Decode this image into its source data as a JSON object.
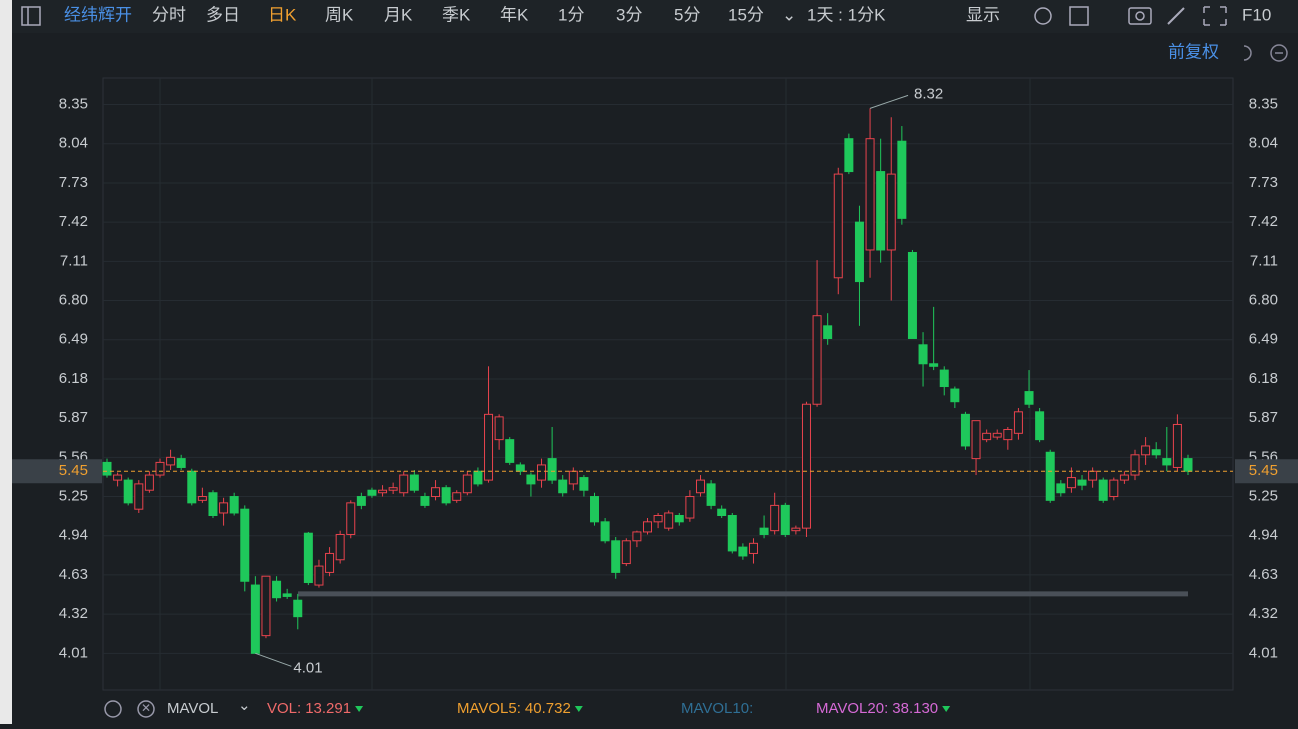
{
  "toolbar": {
    "stock": "经纬辉开",
    "periods": [
      {
        "label": "分时"
      },
      {
        "label": "多日"
      },
      {
        "label": "日K",
        "active": true
      },
      {
        "label": "周K"
      },
      {
        "label": "月K"
      },
      {
        "label": "季K"
      },
      {
        "label": "年K"
      },
      {
        "label": "1分"
      },
      {
        "label": "3分"
      },
      {
        "label": "5分"
      },
      {
        "label": "15分"
      }
    ],
    "range": "1天 : 1分K",
    "display": "显示",
    "f10": "F10"
  },
  "adjust": "前复权",
  "chart_data": {
    "type": "candlestick",
    "up_color": "#e8434d",
    "down_color": "#1fc85b",
    "open": [
      5.52,
      5.38,
      5.38,
      5.15,
      5.3,
      5.42,
      5.5,
      5.55,
      5.45,
      5.22,
      5.28,
      5.12,
      5.25,
      5.15,
      4.55,
      4.15,
      4.58,
      4.48,
      4.43,
      4.96,
      4.55,
      4.65,
      4.75,
      4.95,
      5.25,
      5.3,
      5.28,
      5.3,
      5.28,
      5.42,
      5.25,
      5.25,
      5.32,
      5.22,
      5.28,
      5.45,
      5.38,
      5.7,
      5.7,
      5.5,
      5.42,
      5.38,
      5.55,
      5.38,
      5.35,
      5.4,
      5.25,
      5.05,
      4.9,
      4.72,
      4.9,
      4.97,
      5.05,
      5.0,
      5.1,
      5.08,
      5.28,
      5.35,
      5.15,
      5.1,
      4.85,
      4.8,
      5.0,
      4.98,
      5.18,
      4.98,
      5.0,
      5.98,
      6.6,
      6.98,
      8.08,
      7.42,
      7.2,
      7.82,
      7.2,
      8.06,
      7.18,
      6.45,
      6.3,
      6.25,
      6.1,
      5.9,
      5.55,
      5.7,
      5.72,
      5.7,
      5.75,
      6.08,
      5.92,
      5.6,
      5.35,
      5.32,
      5.38,
      5.38,
      5.38,
      5.25,
      5.38,
      5.42,
      5.58,
      5.62,
      5.55,
      5.48,
      5.55
    ],
    "high": [
      5.55,
      5.44,
      5.4,
      5.38,
      5.45,
      5.55,
      5.62,
      5.58,
      5.47,
      5.32,
      5.3,
      5.24,
      5.28,
      5.18,
      4.62,
      4.62,
      4.62,
      4.52,
      4.48,
      4.97,
      4.75,
      4.85,
      4.98,
      5.22,
      5.28,
      5.32,
      5.34,
      5.36,
      5.45,
      5.46,
      5.28,
      5.38,
      5.34,
      5.3,
      5.45,
      5.48,
      6.28,
      5.9,
      5.72,
      5.52,
      5.44,
      5.55,
      5.8,
      5.42,
      5.48,
      5.42,
      5.28,
      5.08,
      4.93,
      4.92,
      4.98,
      5.08,
      5.12,
      5.14,
      5.12,
      5.3,
      5.42,
      5.38,
      5.18,
      5.12,
      4.88,
      4.92,
      5.1,
      5.28,
      5.2,
      5.02,
      6.0,
      7.12,
      6.7,
      7.85,
      8.12,
      7.55,
      8.32,
      8.08,
      8.25,
      8.18,
      7.2,
      6.55,
      6.75,
      6.28,
      6.12,
      5.92,
      5.85,
      5.78,
      5.78,
      5.8,
      5.95,
      6.25,
      5.95,
      5.62,
      5.38,
      5.48,
      5.42,
      5.48,
      5.4,
      5.4,
      5.45,
      5.62,
      5.72,
      5.68,
      5.8,
      5.9,
      5.58
    ],
    "low": [
      5.4,
      5.33,
      5.18,
      5.12,
      5.28,
      5.4,
      5.46,
      5.46,
      5.18,
      5.2,
      5.08,
      5.02,
      5.1,
      4.5,
      4.01,
      4.13,
      4.42,
      4.44,
      4.2,
      4.55,
      4.53,
      4.62,
      4.72,
      4.92,
      5.15,
      5.24,
      5.25,
      5.27,
      5.25,
      5.28,
      5.16,
      5.22,
      5.18,
      5.2,
      5.26,
      5.33,
      5.36,
      5.62,
      5.5,
      5.42,
      5.25,
      5.32,
      5.35,
      5.25,
      5.3,
      5.25,
      5.02,
      4.88,
      4.6,
      4.7,
      4.85,
      4.95,
      5.0,
      4.98,
      5.02,
      5.05,
      5.25,
      5.15,
      5.08,
      4.8,
      4.75,
      4.72,
      4.92,
      4.95,
      4.93,
      4.95,
      4.93,
      5.96,
      6.45,
      6.85,
      7.8,
      6.6,
      6.98,
      7.1,
      6.8,
      7.4,
      6.5,
      6.12,
      6.25,
      6.05,
      5.95,
      5.62,
      5.42,
      5.68,
      5.7,
      5.62,
      5.7,
      5.95,
      5.68,
      5.2,
      5.25,
      5.28,
      5.3,
      5.32,
      5.2,
      5.22,
      5.35,
      5.38,
      5.5,
      5.55,
      5.45,
      5.45,
      5.42
    ],
    "close": [
      5.42,
      5.42,
      5.2,
      5.35,
      5.42,
      5.52,
      5.56,
      5.48,
      5.2,
      5.25,
      5.1,
      5.2,
      5.12,
      4.58,
      4.01,
      4.62,
      4.45,
      4.46,
      4.3,
      4.57,
      4.7,
      4.8,
      4.95,
      5.2,
      5.18,
      5.26,
      5.3,
      5.32,
      5.42,
      5.3,
      5.18,
      5.32,
      5.2,
      5.28,
      5.42,
      5.35,
      5.9,
      5.88,
      5.52,
      5.45,
      5.35,
      5.5,
      5.38,
      5.28,
      5.45,
      5.3,
      5.05,
      4.9,
      4.65,
      4.9,
      4.97,
      5.05,
      5.1,
      5.12,
      5.05,
      5.25,
      5.38,
      5.18,
      5.1,
      4.82,
      4.78,
      4.88,
      4.95,
      5.18,
      4.95,
      5.0,
      5.98,
      6.68,
      6.5,
      7.8,
      7.82,
      6.95,
      8.08,
      7.2,
      7.8,
      7.45,
      6.5,
      6.3,
      6.28,
      6.12,
      6.0,
      5.65,
      5.85,
      5.75,
      5.75,
      5.78,
      5.92,
      5.98,
      5.7,
      5.22,
      5.28,
      5.4,
      5.34,
      5.45,
      5.22,
      5.38,
      5.42,
      5.58,
      5.65,
      5.58,
      5.5,
      5.82,
      5.45
    ],
    "ylim": [
      3.72,
      8.56
    ],
    "yticks": [
      8.35,
      8.04,
      7.73,
      7.42,
      7.11,
      {
        "value": 6.8,
        "label": "6.80"
      },
      6.49,
      6.18,
      5.87,
      5.56,
      5.25,
      4.94,
      4.63,
      4.32,
      4.01
    ],
    "grid": true,
    "last_price": 5.45,
    "last_price_color": "#f0a030",
    "drawn_line": 4.48,
    "annotations": [
      {
        "label": "8.32"
      },
      {
        "label": "4.01"
      }
    ]
  },
  "indicator_bar": {
    "indicator": "MAVOL",
    "items": [
      {
        "name": "VOL:",
        "value": 13.291,
        "color": "#f06a6a"
      },
      {
        "name": "MAVOL5:",
        "value": 40.732,
        "color": "#f0a030"
      },
      {
        "name": "MAVOL10:",
        "color": "#2f6f95"
      },
      {
        "name": "MAVOL20:",
        "value": 38.13,
        "value_label": "38.130",
        "color": "#d66ad6"
      }
    ]
  }
}
